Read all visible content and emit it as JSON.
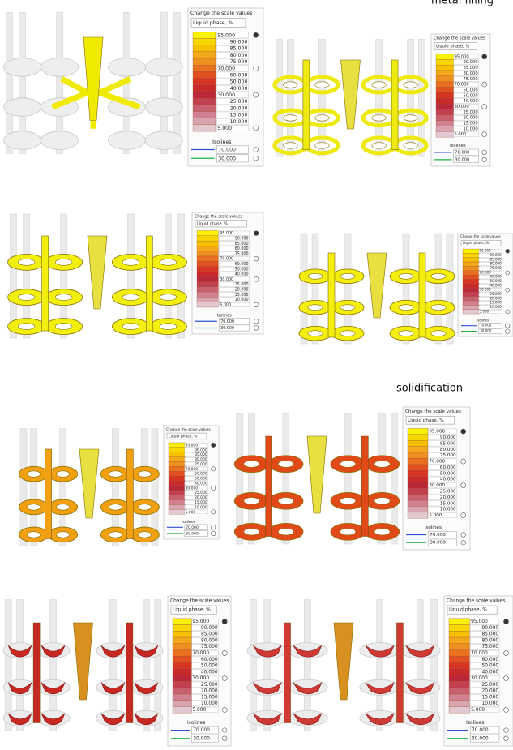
{
  "captions": {
    "metal_filling": "metal filling",
    "solidification": "solidification"
  },
  "panels": [
    {
      "legend": {
        "header": "Change the scale values",
        "field": "Liquid phase, %",
        "scale": [
          "95.000",
          "90.000",
          "85.000",
          "80.000",
          "75.000",
          "70.000",
          "60.000",
          "50.000",
          "40.000",
          "30.000",
          "25.000",
          "20.000",
          "15.000",
          "10.000",
          "5.000"
        ],
        "isolines_label": "Isolines",
        "isolines": [
          "70.000",
          "30.000"
        ]
      }
    },
    {
      "legend": {
        "header": "Change the scale values",
        "field": "Liquid phase, %",
        "scale": [
          "95.000",
          "90.000",
          "85.000",
          "80.000",
          "75.000",
          "70.000",
          "60.000",
          "50.000",
          "40.000",
          "30.000",
          "25.000",
          "20.000",
          "15.000",
          "10.000",
          "5.000"
        ],
        "isolines_label": "Isolines",
        "isolines": [
          "70.000",
          "30.000"
        ]
      }
    },
    {
      "legend": {
        "header": "Change the scale values",
        "field": "Liquid phase, %",
        "scale": [
          "95.000",
          "90.000",
          "85.000",
          "80.000",
          "75.000",
          "70.000",
          "60.000",
          "50.000",
          "40.000",
          "30.000",
          "25.000",
          "20.000",
          "15.000",
          "10.000",
          "5.000"
        ],
        "isolines_label": "Isolines",
        "isolines": [
          "70.000",
          "30.000"
        ]
      }
    },
    {
      "legend": {
        "header": "Change the scale values",
        "field": "Liquid phase, %",
        "scale": [
          "95.000",
          "90.000",
          "85.000",
          "80.000",
          "75.000",
          "70.000",
          "60.000",
          "50.000",
          "40.000",
          "30.000",
          "25.000",
          "20.000",
          "15.000",
          "10.000",
          "5.000"
        ],
        "isolines_label": "Isolines",
        "isolines": [
          "70.000",
          "30.000"
        ]
      }
    },
    {
      "legend": {
        "header": "Change the scale values",
        "field": "Liquid phase, %",
        "scale": [
          "95.000",
          "90.000",
          "85.000",
          "80.000",
          "75.000",
          "70.000",
          "60.000",
          "50.000",
          "40.000",
          "30.000",
          "25.000",
          "20.000",
          "15.000",
          "10.000",
          "5.000"
        ],
        "isolines_label": "Isolines",
        "isolines": [
          "70.000",
          "30.000"
        ]
      }
    },
    {
      "legend": {
        "header": "Change the scale values",
        "field": "Liquid phase, %",
        "scale": [
          "95.000",
          "90.000",
          "85.000",
          "80.000",
          "75.000",
          "70.000",
          "60.000",
          "50.000",
          "40.000",
          "30.000",
          "25.000",
          "20.000",
          "15.000",
          "10.000",
          "5.000"
        ],
        "isolines_label": "Isolines",
        "isolines": [
          "70.000",
          "30.000"
        ]
      }
    },
    {
      "legend": {
        "header": "Change the scale values",
        "field": "Liquid phase, %",
        "scale": [
          "95.000",
          "90.000",
          "85.000",
          "80.000",
          "75.000",
          "70.000",
          "60.000",
          "50.000",
          "40.000",
          "30.000",
          "25.000",
          "20.000",
          "15.000",
          "10.000",
          "5.000"
        ],
        "isolines_label": "Isolines",
        "isolines": [
          "70.000",
          "30.000"
        ]
      }
    },
    {
      "legend": {
        "header": "Change the scale values",
        "field": "Liquid phase, %",
        "scale": [
          "95.000",
          "90.000",
          "85.000",
          "80.000",
          "75.000",
          "70.000",
          "60.000",
          "50.000",
          "40.000",
          "30.000",
          "25.000",
          "20.000",
          "15.000",
          "10.000",
          "5.000"
        ],
        "isolines_label": "Isolines",
        "isolines": [
          "70.000",
          "30.000"
        ]
      }
    }
  ]
}
